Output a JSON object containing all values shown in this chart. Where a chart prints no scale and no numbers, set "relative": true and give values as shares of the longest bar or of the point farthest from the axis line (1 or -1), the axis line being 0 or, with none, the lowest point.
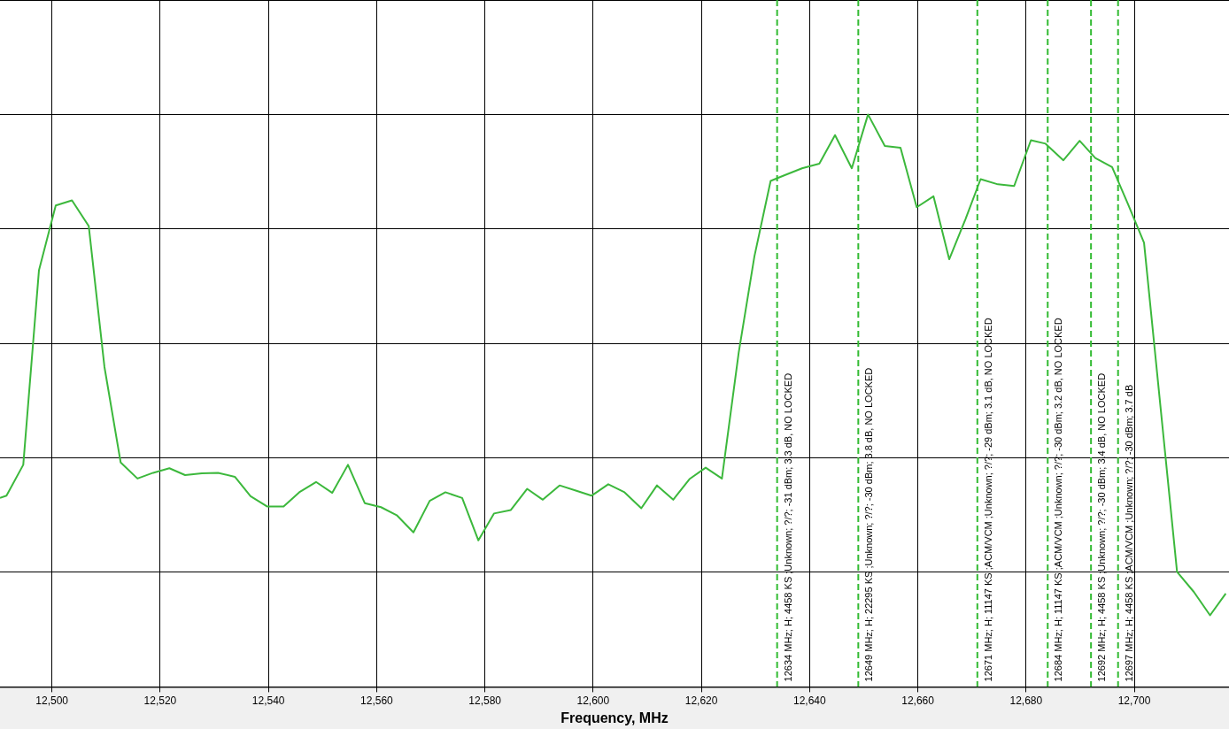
{
  "chart_data": {
    "type": "line",
    "xlabel": "Frequency, MHz",
    "relative": true,
    "grid": true,
    "legend": false,
    "marker": "none",
    "line_style": "solid",
    "xlim": [
      12490.4,
      12717.5
    ],
    "xticks": [
      {
        "value": 12500,
        "label": "12,500"
      },
      {
        "value": 12520,
        "label": "12,520"
      },
      {
        "value": 12540,
        "label": "12,540"
      },
      {
        "value": 12560,
        "label": "12,560"
      },
      {
        "value": 12580,
        "label": "12,580"
      },
      {
        "value": 12600,
        "label": "12,600"
      },
      {
        "value": 12620,
        "label": "12,620"
      },
      {
        "value": 12640,
        "label": "12,640"
      },
      {
        "value": 12660,
        "label": "12,660"
      },
      {
        "value": 12680,
        "label": "12,680"
      },
      {
        "value": 12700,
        "label": "12,700"
      }
    ],
    "series": [
      {
        "color": "#3cb83c",
        "x": [
          12490.4,
          12491.6,
          12494.7,
          12497.6,
          12500.7,
          12503.7,
          12506.8,
          12509.7,
          12512.7,
          12515.8,
          12518.7,
          12521.7,
          12524.6,
          12527.7,
          12530.7,
          12533.8,
          12536.7,
          12539.8,
          12542.8,
          12545.7,
          12548.8,
          12551.8,
          12554.7,
          12557.8,
          12560.8,
          12563.7,
          12566.8,
          12569.8,
          12572.7,
          12575.8,
          12578.8,
          12581.7,
          12584.8,
          12587.8,
          12590.7,
          12593.8,
          12596.8,
          12599.7,
          12602.8,
          12605.8,
          12608.9,
          12611.8,
          12614.8,
          12617.8,
          12620.8,
          12623.8,
          12626.9,
          12629.8,
          12632.8,
          12635.4,
          12638.6,
          12641.8,
          12644.7,
          12647.8,
          12650.8,
          12653.9,
          12656.8,
          12659.8,
          12662.9,
          12665.8,
          12668.8,
          12671.6,
          12674.8,
          12677.8,
          12680.9,
          12683.6,
          12686.9,
          12689.9,
          12692.8,
          12695.9,
          12698.9,
          12701.8,
          12707.9,
          12711.0,
          12714.0,
          12716.9
        ],
        "values": [
          0.33,
          0.334,
          0.388,
          0.728,
          0.841,
          0.85,
          0.805,
          0.559,
          0.392,
          0.364,
          0.374,
          0.382,
          0.37,
          0.373,
          0.374,
          0.367,
          0.333,
          0.315,
          0.315,
          0.34,
          0.358,
          0.339,
          0.388,
          0.321,
          0.314,
          0.3,
          0.27,
          0.325,
          0.34,
          0.33,
          0.256,
          0.303,
          0.309,
          0.346,
          0.327,
          0.352,
          0.343,
          0.334,
          0.354,
          0.34,
          0.312,
          0.352,
          0.327,
          0.363,
          0.383,
          0.364,
          0.584,
          0.752,
          0.884,
          0.894,
          0.906,
          0.914,
          0.964,
          0.906,
          1.0,
          0.945,
          0.942,
          0.838,
          0.857,
          0.747,
          0.817,
          0.887,
          0.878,
          0.875,
          0.955,
          0.949,
          0.92,
          0.954,
          0.924,
          0.908,
          0.842,
          0.776,
          0.201,
          0.166,
          0.125,
          0.163
        ]
      }
    ],
    "ref_lines": [
      {
        "axis": "x",
        "value": 12634,
        "label": "12634 MHz; H; 4458 KS ;Unknown; ?/?; -31 dBm; 3.3 dB, NO LOCKED",
        "color": "#33bb33",
        "line_style": "dashed"
      },
      {
        "axis": "x",
        "value": 12649,
        "label": "12649 MHz; H; 22295 KS ;Unknown; ?/?; -30 dBm; 3.8 dB, NO LOCKED",
        "color": "#33bb33",
        "line_style": "dashed"
      },
      {
        "axis": "x",
        "value": 12671,
        "label": "12671 MHz; H; 11147 KS ;ACM/VCM ;Unknown; ?/?; -29 dBm; 3.1 dB, NO LOCKED",
        "color": "#33bb33",
        "line_style": "dashed"
      },
      {
        "axis": "x",
        "value": 12684,
        "label": "12684 MHz; H; 11147 KS ;ACM/VCM ;Unknown; ?/?; -30 dBm; 3.2 dB, NO LOCKED",
        "color": "#33bb33",
        "line_style": "dashed"
      },
      {
        "axis": "x",
        "value": 12692,
        "label": "12692 MHz; H; 4458 KS ;Unknown; ?/?; -30 dBm; 3.4 dB, NO LOCKED",
        "color": "#33bb33",
        "line_style": "dashed"
      },
      {
        "axis": "x",
        "value": 12697,
        "label": "12697 MHz; H; 4458 KS ;ACM/VCM ;Unknown; ?/?; -30 dBm; 3.7 dB",
        "color": "#33bb33",
        "line_style": "dashed"
      }
    ]
  }
}
